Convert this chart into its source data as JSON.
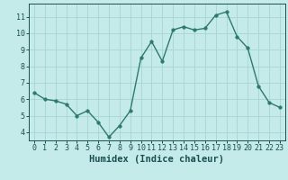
{
  "x": [
    0,
    1,
    2,
    3,
    4,
    5,
    6,
    7,
    8,
    9,
    10,
    11,
    12,
    13,
    14,
    15,
    16,
    17,
    18,
    19,
    20,
    21,
    22,
    23
  ],
  "y": [
    6.4,
    6.0,
    5.9,
    5.7,
    5.0,
    5.3,
    4.6,
    3.7,
    4.4,
    5.3,
    8.5,
    9.5,
    8.3,
    10.2,
    10.4,
    10.2,
    10.3,
    11.1,
    11.3,
    9.8,
    9.1,
    6.8,
    5.8,
    5.5
  ],
  "line_color": "#2d7a6a",
  "marker_color": "#2d7a6a",
  "bg_color": "#c5eaea",
  "grid_color": "#a8d4d4",
  "axis_label_color": "#1a5050",
  "xlabel": "Humidex (Indice chaleur)",
  "ylim": [
    3.5,
    11.8
  ],
  "xlim": [
    -0.5,
    23.5
  ],
  "yticks": [
    4,
    5,
    6,
    7,
    8,
    9,
    10,
    11
  ],
  "xticks": [
    0,
    1,
    2,
    3,
    4,
    5,
    6,
    7,
    8,
    9,
    10,
    11,
    12,
    13,
    14,
    15,
    16,
    17,
    18,
    19,
    20,
    21,
    22,
    23
  ],
  "tick_label_fontsize": 6.0,
  "xlabel_fontsize": 7.5,
  "line_width": 1.0,
  "marker_size": 2.5
}
